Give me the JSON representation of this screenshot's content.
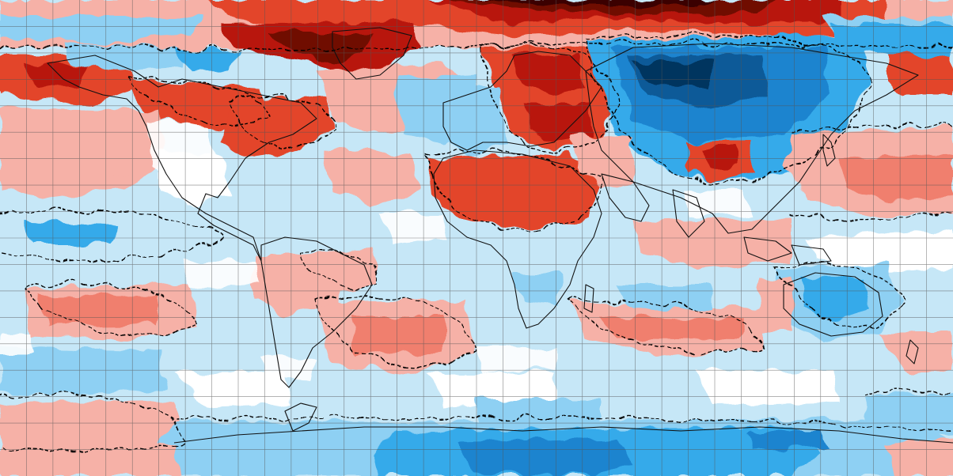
{
  "map": {
    "type": "global anomaly map",
    "projection": "equirectangular",
    "grid": true,
    "colors": {
      "background_light_blue": "#c6e7f7",
      "light_blue": "#8ed0f3",
      "mid_blue": "#36aaea",
      "blue": "#1a84cf",
      "dark_blue": "#0b5a98",
      "navy": "#06355e",
      "white": "#ffffff",
      "light_red": "#f6b1a7",
      "salmon": "#f07f6e",
      "red": "#e3452c",
      "dark_red": "#b8190f",
      "maroon": "#6f0b06",
      "very_dark_red": "#3a0502",
      "coastline": "#111111",
      "gridline": "#555555",
      "contour_dashed": "#000000"
    }
  }
}
